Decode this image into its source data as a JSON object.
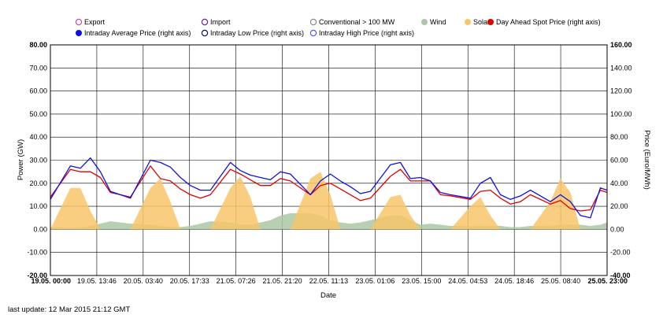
{
  "footer": {
    "last_update": "last update: 12 Mar 2015 21:12 GMT"
  },
  "chart_data": {
    "type": "area",
    "xlabel": "Date",
    "ylabel": "Power (GW)",
    "y2label": "Price (Euro/MWh)",
    "ylim": [
      -20,
      80
    ],
    "y2lim": [
      -40,
      160
    ],
    "yticks": [
      "-20.00",
      "-10.00",
      "0.00",
      "10.00",
      "20.00",
      "30.00",
      "40.00",
      "50.00",
      "60.00",
      "70.00",
      "80.00"
    ],
    "y2ticks": [
      "-40.00",
      "-20.00",
      "0.00",
      "20.00",
      "40.00",
      "60.00",
      "80.00",
      "100.00",
      "120.00",
      "140.00",
      "160.00"
    ],
    "xticks": [
      {
        "label": "19.05. 00:00",
        "bold": true
      },
      {
        "label": "19.05. 13:46",
        "bold": false
      },
      {
        "label": "20.05. 03:40",
        "bold": false
      },
      {
        "label": "20.05. 17:33",
        "bold": false
      },
      {
        "label": "21.05. 07:26",
        "bold": false
      },
      {
        "label": "21.05. 21:20",
        "bold": false
      },
      {
        "label": "22.05. 11:13",
        "bold": false
      },
      {
        "label": "23.05. 01:06",
        "bold": false
      },
      {
        "label": "23.05. 15:00",
        "bold": false
      },
      {
        "label": "24.05. 04:53",
        "bold": false
      },
      {
        "label": "24.05. 18:46",
        "bold": false
      },
      {
        "label": "25.05. 08:40",
        "bold": false
      },
      {
        "label": "25.05. 23:00",
        "bold": true
      }
    ],
    "x_hours": [
      0,
      6,
      9,
      12,
      15,
      18,
      21,
      24,
      30,
      33,
      36,
      39,
      42,
      45,
      48,
      54,
      57,
      60,
      63,
      66,
      69,
      72,
      78,
      81,
      84,
      87,
      90,
      93,
      96,
      102,
      105,
      108,
      111,
      114,
      117,
      120,
      126,
      129,
      132,
      135,
      138,
      141,
      144,
      150,
      153,
      156,
      159,
      162,
      165,
      167
    ],
    "legend": [
      {
        "label": "Export",
        "color": "#c8518f",
        "marker": "open"
      },
      {
        "label": "Import",
        "color": "#6a1fb0",
        "marker": "open"
      },
      {
        "label": "Conventional > 100 MW",
        "color": "#8a8a8a",
        "marker": "open"
      },
      {
        "label": "Wind",
        "color": "#a9c8a3",
        "marker": "filled"
      },
      {
        "label": "Solar",
        "color": "#f8c56a",
        "marker": "filled"
      },
      {
        "label": "Day Ahead Spot Price (right axis)",
        "color": "#e00000",
        "marker": "filled"
      },
      {
        "label": "Intraday Average Price (right axis)",
        "color": "#1010e0",
        "marker": "filled"
      },
      {
        "label": "Intraday Low Price (right axis)",
        "color": "#101070",
        "marker": "open"
      },
      {
        "label": "Intraday High Price (right axis)",
        "color": "#5560e0",
        "marker": "open"
      }
    ],
    "series": [
      {
        "name": "Wind",
        "axis": "left",
        "color": "#a9c8a3",
        "values": [
          1,
          0.5,
          0.8,
          1.5,
          2.5,
          3.5,
          3,
          2.5,
          2,
          1.5,
          1,
          1,
          1.5,
          2.5,
          3.5,
          3,
          2,
          2,
          3,
          4,
          6,
          7,
          7,
          6,
          4,
          3,
          2.5,
          3,
          4,
          6,
          6,
          4,
          2,
          2.5,
          2,
          1.5,
          1.5,
          1.5,
          1.5,
          1.5,
          1,
          1,
          1.5,
          1.5,
          2,
          2,
          2,
          1.5,
          2,
          3
        ]
      },
      {
        "name": "Solar",
        "axis": "left",
        "color": "#f8c56a",
        "values": [
          0,
          18,
          18,
          8,
          0,
          0,
          0,
          0,
          18,
          22,
          12,
          0,
          0,
          0,
          0,
          18,
          23,
          14,
          0,
          0,
          0,
          0,
          22,
          25,
          15,
          0,
          0,
          0,
          0,
          14,
          15,
          6,
          0,
          0,
          0,
          0,
          10,
          14,
          6,
          0,
          0,
          0,
          0,
          12,
          22,
          16,
          0,
          0,
          0,
          0
        ]
      },
      {
        "name": "Day Ahead Spot Price",
        "axis": "right",
        "color": "#e00000",
        "values": [
          28,
          52,
          50,
          50,
          45,
          32,
          30,
          28,
          55,
          44,
          42,
          35,
          30,
          27,
          30,
          52,
          48,
          43,
          38,
          38,
          44,
          42,
          30,
          38,
          40,
          35,
          30,
          25,
          27,
          46,
          52,
          42,
          42,
          42,
          30,
          29,
          26,
          33,
          34,
          27,
          22,
          24,
          30,
          22,
          25,
          18,
          16,
          17,
          34,
          32
        ]
      },
      {
        "name": "Intraday Average Price",
        "axis": "right",
        "color": "#1010e0",
        "values": [
          26,
          55,
          53,
          62,
          50,
          33,
          30,
          27,
          60,
          58,
          54,
          45,
          38,
          34,
          34,
          58,
          51,
          47,
          45,
          43,
          50,
          48,
          30,
          42,
          48,
          42,
          37,
          31,
          33,
          56,
          58,
          44,
          45,
          42,
          32,
          30,
          27,
          40,
          45,
          30,
          26,
          29,
          34,
          24,
          30,
          24,
          12,
          10,
          36,
          34
        ]
      }
    ]
  }
}
